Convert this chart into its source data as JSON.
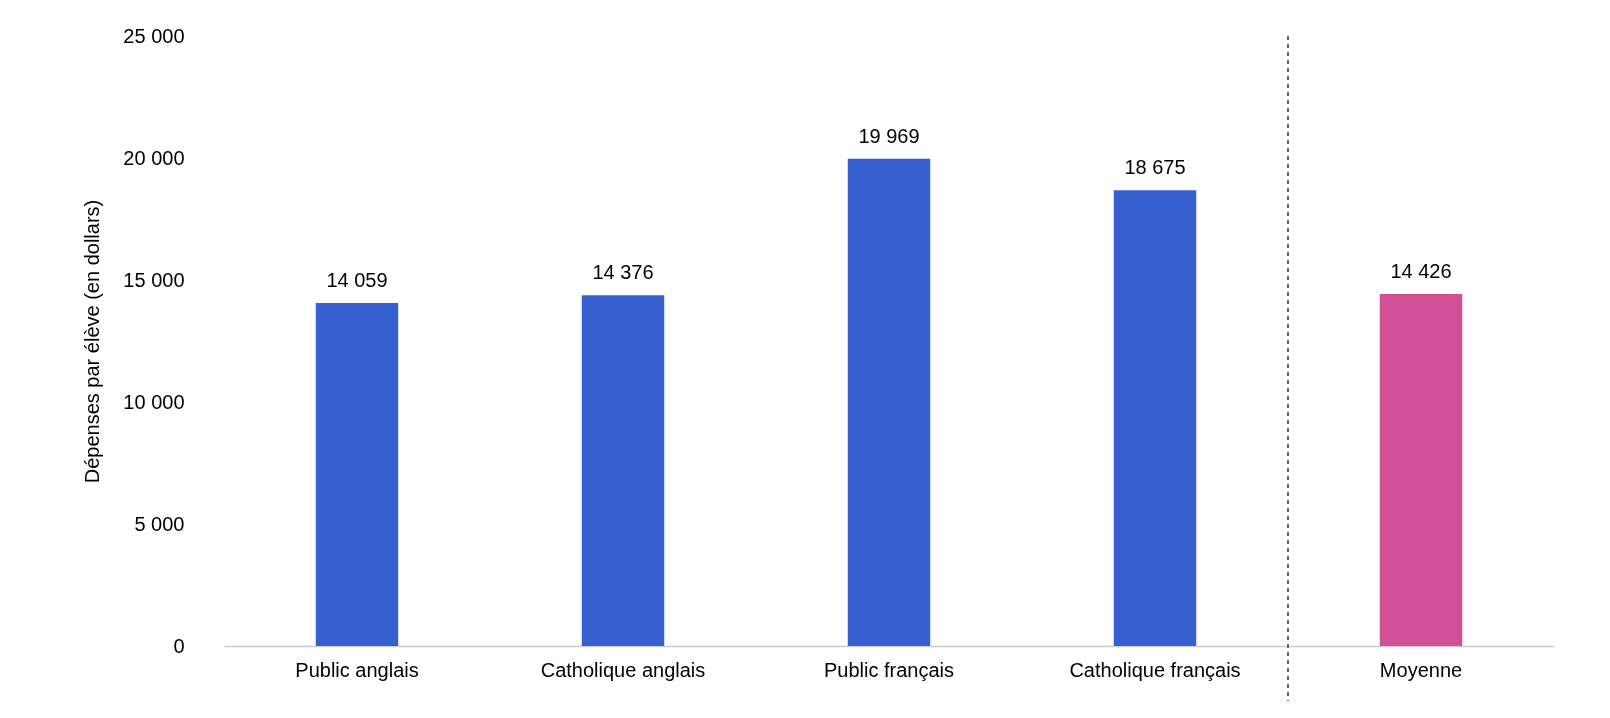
{
  "chart_data": {
    "type": "bar",
    "ylabel": "Dépenses par élève (en dollars)",
    "categories": [
      "Public anglais",
      "Catholique anglais",
      "Public français",
      "Catholique français",
      "Moyenne"
    ],
    "values": [
      14059,
      14376,
      19969,
      18675,
      14426
    ],
    "colors": [
      "#3660cf",
      "#3660cf",
      "#3660cf",
      "#3660cf",
      "#d14f96"
    ],
    "ylim": [
      0,
      25000
    ],
    "yticks": [
      0,
      5000,
      10000,
      15000,
      20000,
      25000
    ],
    "data_labels": true,
    "grid": false
  }
}
